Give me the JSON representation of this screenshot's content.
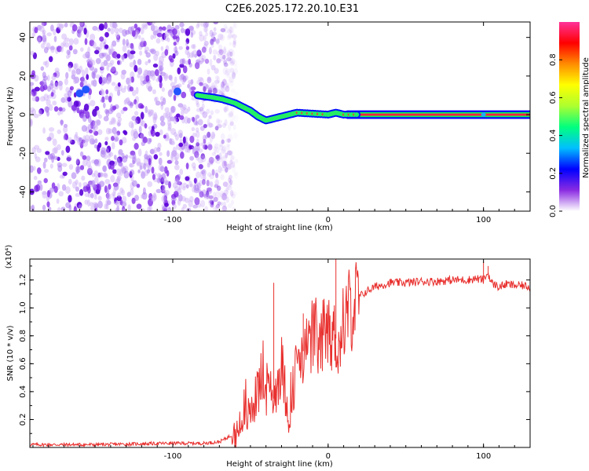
{
  "title": "C2E6.2025.172.20.10.E31",
  "chart_data": [
    {
      "type": "heatmap",
      "xlabel": "Height of straight line (km)",
      "ylabel": "Frequency (Hz)",
      "xlim": [
        -192,
        130
      ],
      "ylim": [
        -50,
        48
      ],
      "x_ticks": [
        -100,
        0,
        100
      ],
      "y_ticks": [
        -40,
        -20,
        0,
        20,
        40
      ],
      "colorbar": {
        "label": "Normalized spectral amplitude",
        "range": [
          0.0,
          1.0
        ],
        "ticks": [
          0.0,
          0.2,
          0.4,
          0.6,
          0.8
        ],
        "colormap": [
          "#ffffff",
          "#8a2be2",
          "#0000ff",
          "#00bfff",
          "#00ff7f",
          "#adff2f",
          "#ffff00",
          "#ff8c00",
          "#ff0000",
          "#ff3399"
        ]
      },
      "features": {
        "noise_region_x": [
          -192,
          -65
        ],
        "trace": {
          "x": [
            -84,
            -75,
            -68,
            -60,
            -55,
            -50,
            -45,
            -40,
            -35,
            -30,
            -25,
            -20,
            -10,
            0,
            5,
            10,
            20,
            40,
            60,
            80,
            100,
            130
          ],
          "y": [
            10,
            9,
            8,
            6,
            4,
            2,
            -1,
            -3,
            -2,
            -1,
            0,
            1,
            0.5,
            0,
            1,
            0,
            0,
            0,
            0,
            0,
            0,
            0
          ]
        }
      }
    },
    {
      "type": "line",
      "xlabel": "Height of straight line (km)",
      "ylabel": "SNR (10 * v/v)",
      "yscale_label": "(x10⁴)",
      "xlim": [
        -192,
        130
      ],
      "ylim": [
        0.0,
        1.35
      ],
      "x_ticks": [
        -100,
        0,
        100
      ],
      "y_ticks": [
        0.2,
        0.4,
        0.6,
        0.8,
        1.0,
        1.2
      ],
      "color": "#e8302e",
      "series": [
        {
          "x": [
            -192,
            -150,
            -100,
            -80,
            -70,
            -60,
            -55,
            -50,
            -45,
            -42,
            -40,
            -37,
            -35,
            -30,
            -25,
            -20,
            -15,
            -10,
            -5,
            0,
            5,
            8,
            10,
            15,
            20,
            25,
            30,
            40,
            50,
            60,
            70,
            80,
            90,
            95,
            100,
            103,
            105,
            110,
            115,
            120,
            125,
            130
          ],
          "values": [
            0.02,
            0.02,
            0.03,
            0.03,
            0.04,
            0.1,
            0.18,
            0.25,
            0.4,
            0.55,
            0.3,
            0.45,
            0.35,
            0.6,
            0.2,
            0.65,
            0.7,
            0.8,
            0.7,
            0.85,
            0.78,
            0.7,
            0.95,
            1.0,
            1.08,
            1.12,
            1.15,
            1.18,
            1.18,
            1.19,
            1.19,
            1.2,
            1.2,
            1.21,
            1.2,
            1.25,
            1.18,
            1.15,
            1.17,
            1.16,
            1.16,
            1.15
          ]
        }
      ]
    }
  ]
}
